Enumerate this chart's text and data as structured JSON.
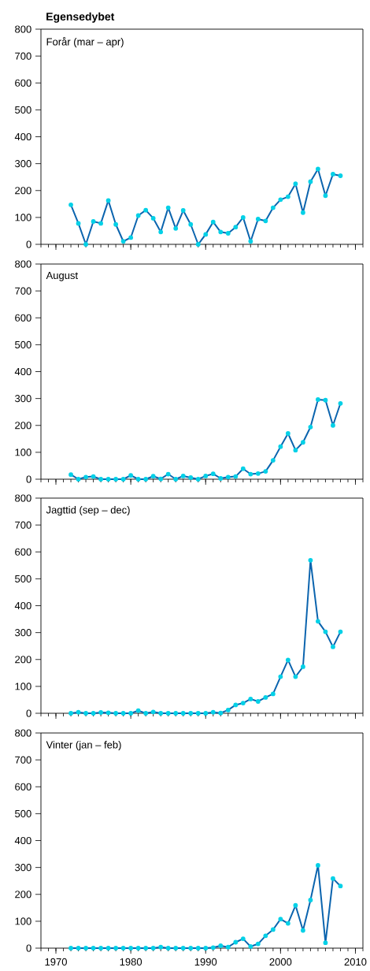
{
  "chart_data": [
    {
      "type": "line",
      "title": "Egensedybet",
      "subtitle": "Forår (mar – apr)",
      "x": [
        1972,
        1973,
        1974,
        1975,
        1976,
        1977,
        1978,
        1979,
        1980,
        1981,
        1982,
        1983,
        1984,
        1985,
        1986,
        1987,
        1988,
        1989,
        1990,
        1991,
        1992,
        1993,
        1994,
        1995,
        1996,
        1997,
        1998,
        1999,
        2000,
        2001,
        2002,
        2003,
        2004,
        2005,
        2006,
        2007,
        2008
      ],
      "series": [
        {
          "color": "#0b64ae",
          "values": [
            147,
            78,
            0,
            85,
            78,
            163,
            74,
            11,
            25,
            107,
            127,
            97,
            46,
            136,
            59,
            126,
            74,
            0,
            37,
            83,
            46,
            41,
            64,
            100,
            11,
            94,
            87,
            136,
            166,
            177,
            225,
            118,
            233,
            280,
            181,
            261,
            255
          ]
        }
      ],
      "xlim": [
        1968,
        2011
      ],
      "ylim": [
        0,
        800
      ],
      "xticks": [
        1970,
        1980,
        1990,
        2000,
        2010
      ],
      "yticks": [
        0,
        100,
        200,
        300,
        400,
        500,
        600,
        700,
        800
      ],
      "tick_labels": "y",
      "grid": false,
      "marker": "circle",
      "line_style": "solid"
    },
    {
      "type": "line",
      "subtitle": "August",
      "x": [
        1972,
        1973,
        1974,
        1975,
        1976,
        1977,
        1978,
        1979,
        1980,
        1981,
        1982,
        1983,
        1984,
        1985,
        1986,
        1987,
        1988,
        1989,
        1990,
        1991,
        1992,
        1993,
        1994,
        1995,
        1996,
        1997,
        1998,
        1999,
        2000,
        2001,
        2002,
        2003,
        2004,
        2005,
        2006,
        2007,
        2008
      ],
      "series": [
        {
          "color": "#0b64ae",
          "values": [
            17,
            0,
            8,
            10,
            0,
            0,
            0,
            0,
            14,
            0,
            0,
            11,
            1,
            19,
            0,
            12,
            6,
            0,
            12,
            20,
            3,
            8,
            10,
            39,
            19,
            21,
            29,
            70,
            121,
            170,
            108,
            137,
            194,
            296,
            294,
            200,
            282
          ]
        }
      ],
      "xlim": [
        1968,
        2011
      ],
      "ylim": [
        0,
        800
      ],
      "xticks": [
        1970,
        1980,
        1990,
        2000,
        2010
      ],
      "yticks": [
        0,
        100,
        200,
        300,
        400,
        500,
        600,
        700,
        800
      ],
      "tick_labels": "y",
      "grid": false,
      "marker": "circle",
      "line_style": "solid"
    },
    {
      "type": "line",
      "subtitle": "Jagttid (sep – dec)",
      "x": [
        1972,
        1973,
        1974,
        1975,
        1976,
        1977,
        1978,
        1979,
        1980,
        1981,
        1982,
        1983,
        1984,
        1985,
        1986,
        1987,
        1988,
        1989,
        1990,
        1991,
        1992,
        1993,
        1994,
        1995,
        1996,
        1997,
        1998,
        1999,
        2000,
        2001,
        2002,
        2003,
        2004,
        2005,
        2006,
        2007,
        2008
      ],
      "series": [
        {
          "color": "#0b64ae",
          "values": [
            0,
            4,
            0,
            0,
            3,
            2,
            0,
            0,
            0,
            10,
            0,
            5,
            0,
            0,
            0,
            0,
            0,
            0,
            0,
            4,
            1,
            12,
            31,
            38,
            53,
            44,
            59,
            72,
            136,
            198,
            136,
            173,
            569,
            342,
            303,
            247,
            303
          ]
        }
      ],
      "xlim": [
        1968,
        2011
      ],
      "ylim": [
        0,
        800
      ],
      "xticks": [
        1970,
        1980,
        1990,
        2000,
        2010
      ],
      "yticks": [
        0,
        100,
        200,
        300,
        400,
        500,
        600,
        700,
        800
      ],
      "tick_labels": "y",
      "grid": false,
      "marker": "circle",
      "line_style": "solid"
    },
    {
      "type": "line",
      "subtitle": "Vinter (jan – feb)",
      "x": [
        1972,
        1973,
        1974,
        1975,
        1976,
        1977,
        1978,
        1979,
        1980,
        1981,
        1982,
        1983,
        1984,
        1985,
        1986,
        1987,
        1988,
        1989,
        1990,
        1991,
        1992,
        1993,
        1994,
        1995,
        1996,
        1997,
        1998,
        1999,
        2000,
        2001,
        2002,
        2003,
        2004,
        2005,
        2006,
        2007,
        2008
      ],
      "series": [
        {
          "color": "#0b64ae",
          "values": [
            0,
            0,
            0,
            0,
            0,
            0,
            0,
            0,
            0,
            0,
            0,
            0,
            4,
            0,
            0,
            0,
            0,
            0,
            0,
            2,
            9,
            4,
            22,
            35,
            6,
            16,
            46,
            69,
            108,
            92,
            159,
            66,
            179,
            308,
            20,
            259,
            231
          ]
        }
      ],
      "xlim": [
        1968,
        2011
      ],
      "ylim": [
        0,
        800
      ],
      "xticks": [
        1970,
        1980,
        1990,
        2000,
        2010
      ],
      "yticks": [
        0,
        100,
        200,
        300,
        400,
        500,
        600,
        700,
        800
      ],
      "grid": false,
      "marker": "circle",
      "line_style": "solid"
    }
  ]
}
